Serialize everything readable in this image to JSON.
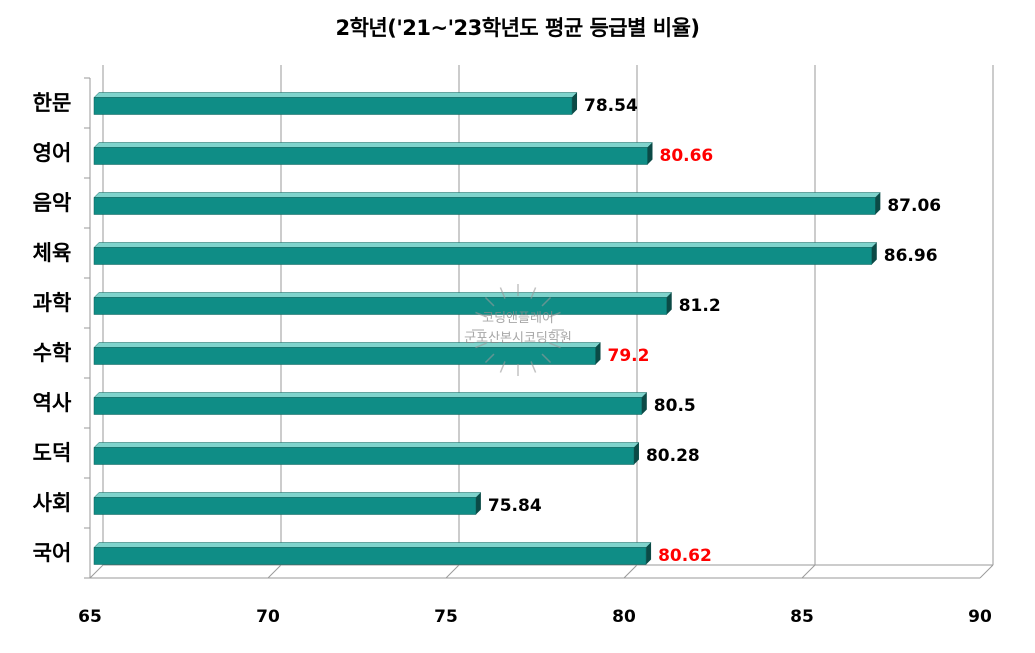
{
  "chart_data": {
    "type": "bar",
    "orientation": "horizontal",
    "title": "2학년('21~'23학년도 평균 등급별 비율)",
    "categories": [
      "한문",
      "영어",
      "음악",
      "체육",
      "과학",
      "수학",
      "역사",
      "도덕",
      "사회",
      "국어"
    ],
    "values": [
      78.54,
      80.66,
      87.06,
      86.96,
      81.2,
      79.2,
      80.5,
      80.28,
      75.84,
      80.62
    ],
    "value_labels": [
      "78.54",
      "80.66",
      "87.06",
      "86.96",
      "81.2",
      "79.2",
      "80.5",
      "80.28",
      "75.84",
      "80.62"
    ],
    "highlight": [
      false,
      true,
      false,
      false,
      false,
      true,
      false,
      false,
      false,
      true
    ],
    "xlim": [
      65,
      90
    ],
    "xticks": [
      65,
      70,
      75,
      80,
      85,
      90
    ],
    "grid": true,
    "legend": "none",
    "colors": {
      "bar_front": "#0f8d86",
      "bar_top": "#7fd3cc",
      "bar_side": "#0b4a46",
      "label_default": "#000000",
      "label_highlight": "#ff0000",
      "grid": "#9a9a9a"
    }
  },
  "watermark": {
    "line1": "코딩앤플레이",
    "line2": "군포산본시코딩학원"
  }
}
